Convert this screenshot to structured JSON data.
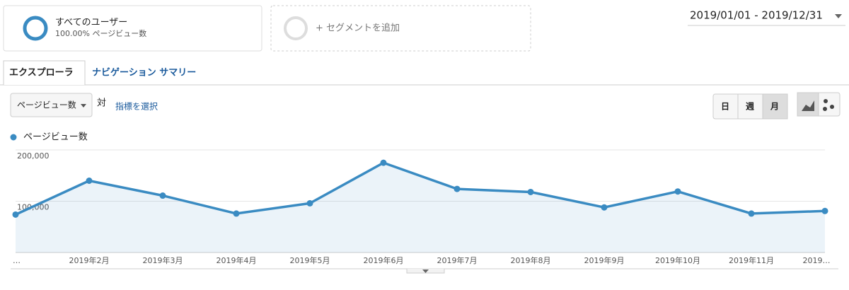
{
  "segments": [
    {
      "name": "すべてのユーザー",
      "detail": "100.00% ページビュー数"
    }
  ],
  "add_segment": "+ セグメントを追加",
  "date_range": "2019/01/01 - 2019/12/31",
  "tabs": [
    "エクスプローラ",
    "ナビゲーション サマリー"
  ],
  "metric_select": "ページビュー数",
  "versus": "対",
  "choose_metric": "指標を選択",
  "granularity": [
    "日",
    "週",
    "月"
  ],
  "chart_data": {
    "type": "line",
    "categories": [
      "…",
      "2019年2月",
      "2019年3月",
      "2019年4月",
      "2019年5月",
      "2019年6月",
      "2019年7月",
      "2019年8月",
      "2019年9月",
      "2019年10月",
      "2019年11月",
      "2019…"
    ],
    "series": [
      {
        "name": "ページビュー数",
        "color": "#3a8bc2",
        "values": [
          74000,
          140000,
          111000,
          76000,
          96000,
          175000,
          124000,
          118000,
          88000,
          119000,
          76000,
          81000
        ]
      }
    ],
    "ylim": [
      0,
      200000
    ],
    "yticks": [
      {
        "value": 100000,
        "label": "100,000"
      },
      {
        "value": 200000,
        "label": "200,000"
      }
    ],
    "grid": true,
    "area": true
  }
}
